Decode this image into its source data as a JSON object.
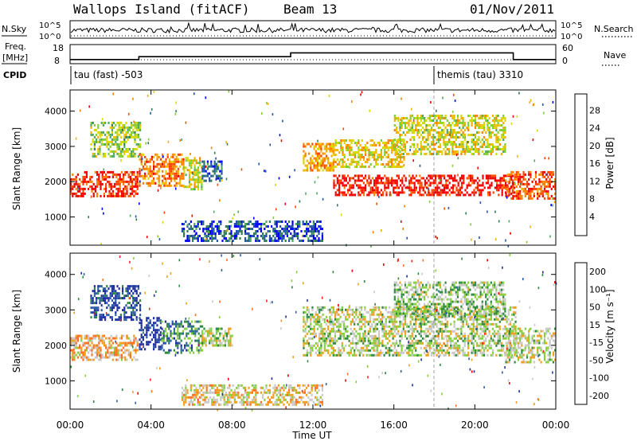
{
  "header": {
    "station": "Wallops Island (fitACF)",
    "beam": "Beam 13",
    "date": "01/Nov/2011"
  },
  "strip_nsky": {
    "left_label": "N.Sky",
    "right_label": "N.Search",
    "y_ticks": [
      "10^5",
      "10^0"
    ]
  },
  "strip_freq": {
    "left_label_top": "Freq.",
    "left_label_unit": "[MHz]",
    "y_ticks": [
      "18",
      "8"
    ],
    "right_label": "Nave",
    "right_ticks": [
      "60",
      "0"
    ],
    "freq_steps": [
      {
        "x0": 0.0,
        "x1": 3.4,
        "f": 10.6
      },
      {
        "x0": 3.4,
        "x1": 10.9,
        "f": 12.4
      },
      {
        "x0": 10.9,
        "x1": 21.9,
        "f": 14.8
      },
      {
        "x0": 21.9,
        "x1": 24.0,
        "f": 10.6
      }
    ]
  },
  "cpid": {
    "label": "CPID",
    "programs": [
      {
        "text": "tau (fast) -503",
        "start": 0.0
      },
      {
        "text": "themis (tau) 3310",
        "start": 18.0
      }
    ]
  },
  "x_axis": {
    "label": "Time UT",
    "ticks": [
      "00:00",
      "04:00",
      "08:00",
      "12:00",
      "16:00",
      "20:00",
      "00:00"
    ],
    "range": [
      0,
      24
    ]
  },
  "chart_data": [
    {
      "type": "heatmap",
      "name": "power",
      "ylabel": "Slant Range [km]",
      "yticks": [
        "1000",
        "2000",
        "3000",
        "4000"
      ],
      "ylim": [
        200,
        4600
      ],
      "xlim": [
        0,
        24
      ],
      "colorbar": {
        "label": "Power [dB]",
        "ticks": [
          "4",
          "8",
          "12",
          "16",
          "20",
          "24",
          "28"
        ],
        "colors": [
          "#0000ff",
          "#2255aa",
          "#2e7d52",
          "#4fa860",
          "#7fcf30",
          "#d8d800",
          "#f8b000",
          "#ff8000",
          "#ff4400",
          "#f00000"
        ]
      },
      "echo_bands": [
        {
          "t0": 0.0,
          "t1": 3.3,
          "r0": 1600,
          "r1": 2300,
          "level": 0.9
        },
        {
          "t0": 1.0,
          "t1": 3.5,
          "r0": 2700,
          "r1": 3700,
          "level": 0.45
        },
        {
          "t0": 3.4,
          "t1": 5.6,
          "r0": 1900,
          "r1": 2800,
          "level": 0.75
        },
        {
          "t0": 5.6,
          "t1": 6.5,
          "r0": 1800,
          "r1": 2700,
          "level": 0.55
        },
        {
          "t0": 6.5,
          "t1": 7.5,
          "r0": 2000,
          "r1": 2600,
          "level": 0.2
        },
        {
          "t0": 5.5,
          "t1": 12.5,
          "r0": 300,
          "r1": 900,
          "level": 0.15
        },
        {
          "t0": 11.5,
          "t1": 13.0,
          "r0": 2300,
          "r1": 3100,
          "level": 0.7
        },
        {
          "t0": 13.0,
          "t1": 22.0,
          "r0": 1600,
          "r1": 2200,
          "level": 0.95
        },
        {
          "t0": 13.0,
          "t1": 16.5,
          "r0": 2400,
          "r1": 3200,
          "level": 0.6
        },
        {
          "t0": 16.0,
          "t1": 21.5,
          "r0": 2800,
          "r1": 3900,
          "level": 0.55
        },
        {
          "t0": 21.5,
          "t1": 24.0,
          "r0": 1500,
          "r1": 2300,
          "level": 0.85
        }
      ]
    },
    {
      "type": "heatmap",
      "name": "velocity",
      "ylabel": "Slant Range [km]",
      "yticks": [
        "1000",
        "2000",
        "3000",
        "4000"
      ],
      "ylim": [
        200,
        4600
      ],
      "xlim": [
        0,
        24
      ],
      "colorbar": {
        "label": "Velocity [m s⁻¹]",
        "ticks": [
          "200",
          "100",
          "50",
          "15",
          "-15",
          "-50",
          "-100",
          "-200"
        ],
        "colors": [
          "#2030a0",
          "#2d5ea8",
          "#2e8a40",
          "#86cf3c",
          "#c8c8c8",
          "#f0a020",
          "#ff7020",
          "#ff2020",
          "#ee0000"
        ]
      },
      "echo_bands": [
        {
          "t0": 0.0,
          "t1": 3.3,
          "r0": 1600,
          "r1": 2300,
          "level": 0.6
        },
        {
          "t0": 1.0,
          "t1": 3.5,
          "r0": 2700,
          "r1": 3700,
          "level": 0.1
        },
        {
          "t0": 3.4,
          "t1": 4.5,
          "r0": 1900,
          "r1": 2800,
          "level": 0.05
        },
        {
          "t0": 4.5,
          "t1": 6.5,
          "r0": 1800,
          "r1": 2700,
          "level": 0.25
        },
        {
          "t0": 6.5,
          "t1": 8.0,
          "r0": 2000,
          "r1": 2500,
          "level": 0.45
        },
        {
          "t0": 5.5,
          "t1": 12.5,
          "r0": 300,
          "r1": 900,
          "level": 0.55
        },
        {
          "t0": 11.5,
          "t1": 22.0,
          "r0": 1700,
          "r1": 3100,
          "level": 0.45
        },
        {
          "t0": 16.0,
          "t1": 21.5,
          "r0": 2800,
          "r1": 3800,
          "level": 0.4
        },
        {
          "t0": 21.5,
          "t1": 24.0,
          "r0": 1500,
          "r1": 2500,
          "level": 0.45
        }
      ]
    }
  ]
}
